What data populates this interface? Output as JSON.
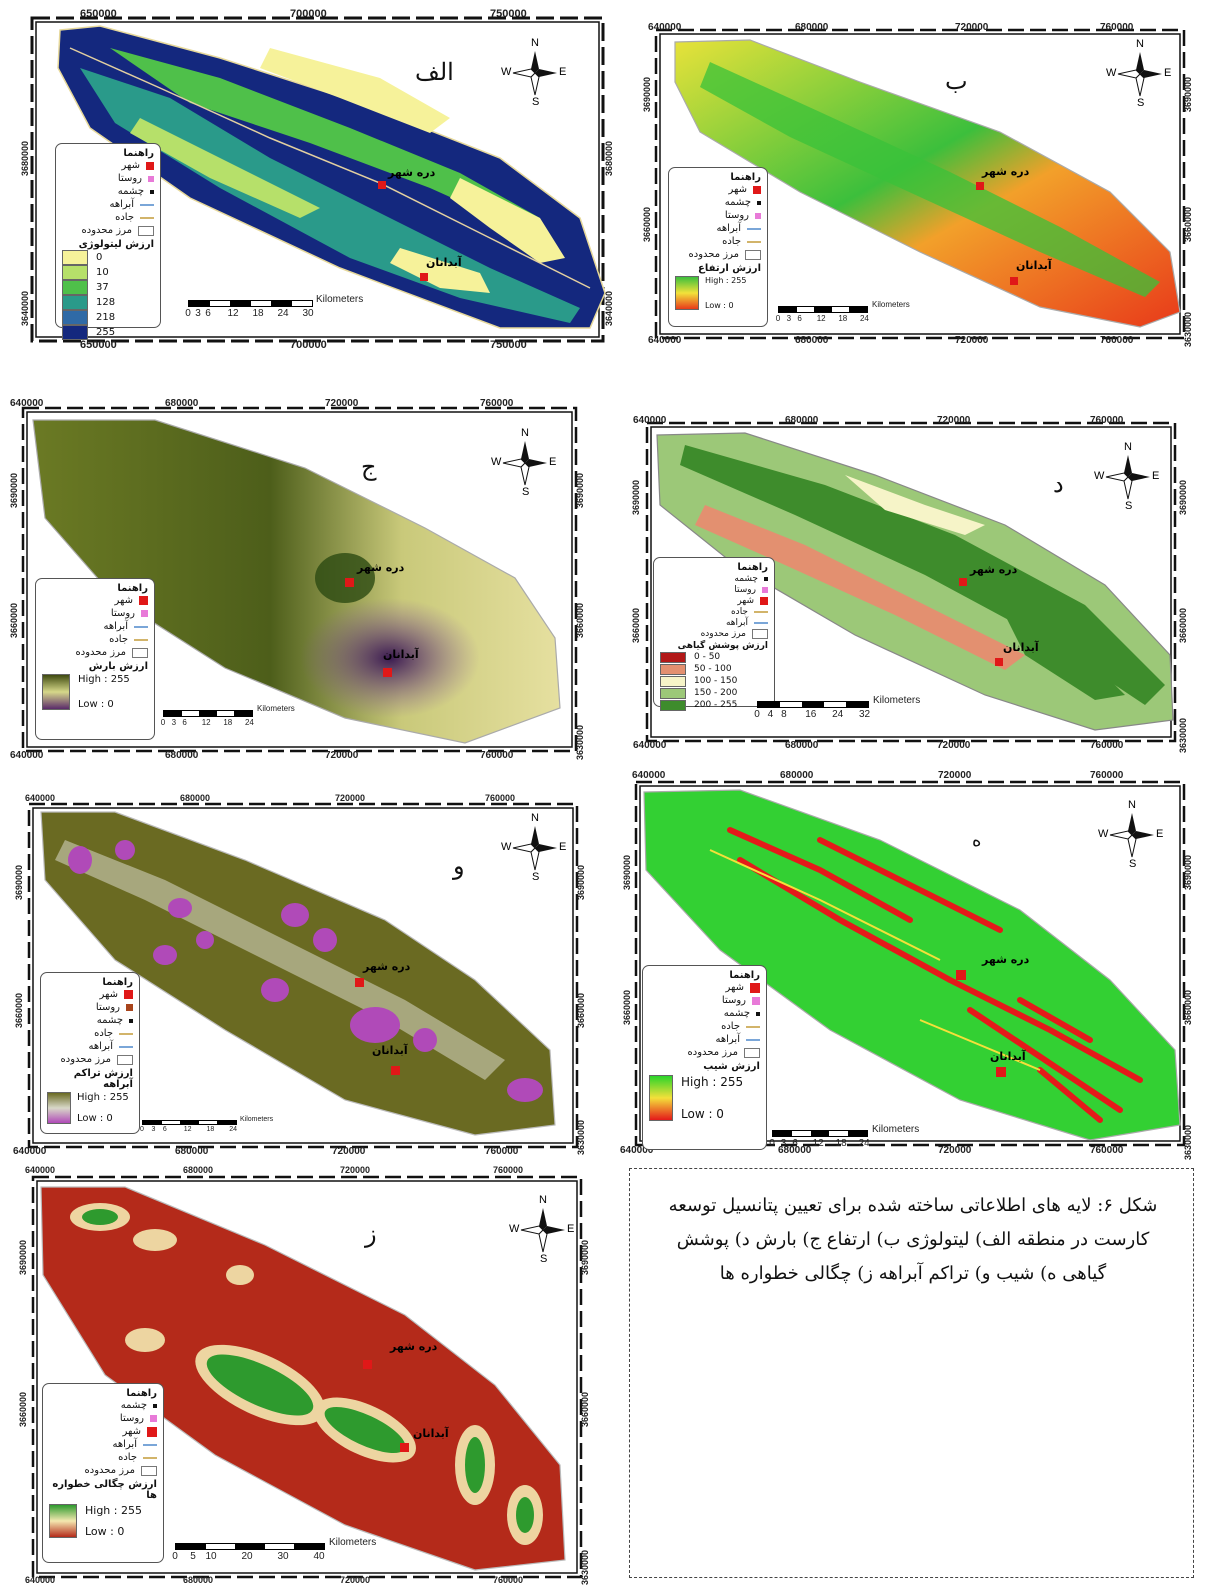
{
  "figure_caption": "شکل ۶: لایه های اطلاعاتی ساخته شده برای تعیین پتانسیل توسعه کارست در منطقه الف) لیتولوژی ب) ارتفاع  ج) بارش  د) پوشش گیاهی  ه) شیب  و) تراکم آبراهه  ز) چگالی خطواره ها",
  "common": {
    "legend_title": "راهنما",
    "city": "شهر",
    "village": "روستا",
    "spring": "چشمه",
    "stream": "آبراهه",
    "road": "جاده",
    "boundary": "مرز محدوده",
    "town_dare_shahr": "دره شهر",
    "town_abdanan": "آبدانان",
    "km": "Kilometers",
    "north": "N",
    "south": "S",
    "east": "E",
    "west": "W"
  },
  "panels": [
    {
      "id": "alef",
      "label": "الف",
      "x_ticks": [
        "650000",
        "700000",
        "750000"
      ],
      "y_ticks": [
        "3680000",
        "3640000"
      ],
      "legend_value_title": "ارزش لیتولوژی",
      "classes": [
        {
          "label": "0",
          "color": "#f6f29a"
        },
        {
          "label": "10",
          "color": "#b6e06a"
        },
        {
          "label": "37",
          "color": "#4fc04a"
        },
        {
          "label": "128",
          "color": "#2a9a8a"
        },
        {
          "label": "218",
          "color": "#2f6aa6"
        },
        {
          "label": "255",
          "color": "#14287e"
        }
      ],
      "scale_ticks": [
        "0",
        "3",
        "6",
        "12",
        "18",
        "24",
        "30"
      ]
    },
    {
      "id": "be",
      "label": "ب",
      "x_ticks": [
        "640000",
        "680000",
        "720000",
        "760000"
      ],
      "y_ticks": [
        "3690000",
        "3660000",
        "3630000"
      ],
      "legend_value_title": "ارزش ارتفاع",
      "gradient": {
        "high": "High : 255",
        "low": "Low : 0",
        "colors": [
          "#3cbf3c",
          "#f2e23a",
          "#e83a1a"
        ]
      },
      "scale_ticks": [
        "0",
        "3",
        "6",
        "12",
        "18",
        "24"
      ]
    },
    {
      "id": "jim",
      "label": "ج",
      "x_ticks": [
        "640000",
        "680000",
        "720000",
        "760000"
      ],
      "y_ticks": [
        "3690000",
        "3660000",
        "3630000"
      ],
      "legend_value_title": "ارزش بارش",
      "gradient": {
        "high": "High : 255",
        "low": "Low : 0",
        "colors": [
          "#3f4a10",
          "#d6d88a",
          "#5a2a6a"
        ]
      },
      "scale_ticks": [
        "0",
        "3",
        "6",
        "12",
        "18",
        "24"
      ]
    },
    {
      "id": "dal",
      "label": "د",
      "x_ticks": [
        "640000",
        "680000",
        "720000",
        "760000"
      ],
      "y_ticks": [
        "3690000",
        "3660000",
        "3630000"
      ],
      "legend_value_title": "ارزش پوشش گیاهی",
      "classes": [
        {
          "label": "0 - 50",
          "color": "#b21818"
        },
        {
          "label": "50 - 100",
          "color": "#e39070"
        },
        {
          "label": "100 - 150",
          "color": "#f6f4c8"
        },
        {
          "label": "150 - 200",
          "color": "#9cc878"
        },
        {
          "label": "200 - 255",
          "color": "#3e8c2c"
        }
      ],
      "scale_ticks": [
        "0",
        "4",
        "8",
        "16",
        "24",
        "32"
      ]
    },
    {
      "id": "he",
      "label": "ه",
      "x_ticks": [
        "640000",
        "680000",
        "720000",
        "760000"
      ],
      "y_ticks": [
        "3690000",
        "3660000",
        "3630000"
      ],
      "legend_value_title": "ارزش شیب",
      "gradient": {
        "high": "High : 255",
        "low": "Low : 0",
        "colors": [
          "#2ad42a",
          "#f4e03a",
          "#e41a1a"
        ]
      },
      "scale_ticks": [
        "0",
        "3",
        "6",
        "12",
        "18",
        "24"
      ]
    },
    {
      "id": "vav",
      "label": "و",
      "x_ticks": [
        "640000",
        "680000",
        "720000",
        "760000"
      ],
      "y_ticks": [
        "3690000",
        "3660000",
        "3630000"
      ],
      "legend_value_title": "ارزش تراکم آبراهه",
      "gradient": {
        "high": "High : 255",
        "low": "Low : 0",
        "colors": [
          "#6a6a22",
          "#d8d8c8",
          "#b04ab8"
        ]
      },
      "scale_ticks": [
        "0",
        "3",
        "6",
        "12",
        "18",
        "24"
      ]
    },
    {
      "id": "ze",
      "label": "ز",
      "x_ticks": [
        "640000",
        "680000",
        "720000",
        "760000"
      ],
      "y_ticks": [
        "3690000",
        "3660000",
        "3630000"
      ],
      "legend_value_title": "ارزش چگالی خطواره ها",
      "gradient": {
        "high": "High : 255",
        "low": "Low : 0",
        "colors": [
          "#2e9a2e",
          "#f4e8b0",
          "#b42a1a"
        ]
      },
      "scale_ticks": [
        "0",
        "5",
        "10",
        "20",
        "30",
        "40"
      ]
    }
  ]
}
